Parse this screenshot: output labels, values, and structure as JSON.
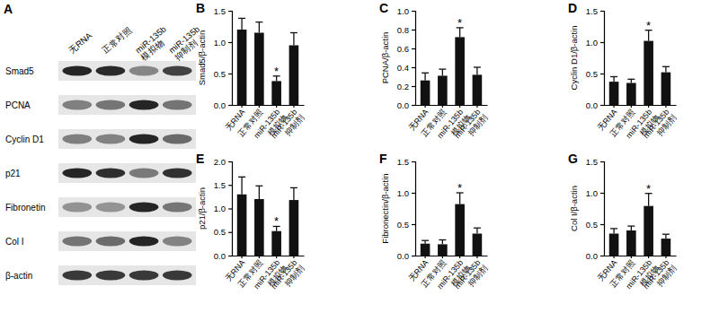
{
  "chart_data": [
    {
      "type": "blot",
      "panel_label": "A",
      "lanes": [
        "无RNA",
        "正常对照",
        "miR-135b 模拟物",
        "miR-135b 抑制剂"
      ],
      "rows": [
        "Smad5",
        "PCNA",
        "Cyclin D1",
        "p21",
        "Fibronetin",
        "Col I",
        "β-actin"
      ]
    },
    {
      "type": "bar",
      "panel_label": "B",
      "ylabel": "Smad5/β-actin",
      "color": "#111111",
      "categories": [
        "无RNA",
        "正常对照",
        "miR-135b 模拟物",
        "miR-135b 抑制剂"
      ],
      "values": [
        1.2,
        1.15,
        0.38,
        0.95
      ],
      "errors": [
        0.18,
        0.17,
        0.08,
        0.2
      ],
      "ylim": [
        0,
        1.5
      ],
      "yticks": [
        {
          "value": 0,
          "label": "0.0"
        },
        {
          "value": 0.5,
          "label": "0.5"
        },
        {
          "value": 1,
          "label": "1.0"
        },
        {
          "value": 1.5,
          "label": "1.5"
        }
      ],
      "annotations": [
        {
          "x": "miR-135b 模拟物",
          "text": "*"
        }
      ]
    },
    {
      "type": "bar",
      "panel_label": "C",
      "ylabel": "PCNA/β-actin",
      "color": "#111111",
      "categories": [
        "无RNA",
        "正常对照",
        "miR-135b 模拟物",
        "miR-135b 抑制剂"
      ],
      "values": [
        0.26,
        0.31,
        0.72,
        0.32
      ],
      "errors": [
        0.08,
        0.07,
        0.1,
        0.08
      ],
      "ylim": [
        0,
        1
      ],
      "yticks": [
        {
          "value": 0,
          "label": "0.0"
        },
        0.2,
        0.4,
        0.6,
        0.8,
        {
          "value": 1,
          "label": "1.0"
        }
      ],
      "annotations": [
        {
          "x": "miR-135b 模拟物",
          "text": "*"
        }
      ]
    },
    {
      "type": "bar",
      "panel_label": "D",
      "ylabel": "Cyclin D1/β-actin",
      "color": "#111111",
      "categories": [
        "无RNA",
        "正常对照",
        "miR-135b 模拟物",
        "miR-135b 抑制剂"
      ],
      "values": [
        0.37,
        0.35,
        1.02,
        0.52
      ],
      "errors": [
        0.08,
        0.06,
        0.17,
        0.09
      ],
      "ylim": [
        0,
        1.5
      ],
      "yticks": [
        {
          "value": 0,
          "label": "0.0"
        },
        {
          "value": 0.5,
          "label": "0.5"
        },
        {
          "value": 1,
          "label": "1.0"
        },
        {
          "value": 1.5,
          "label": "1.5"
        }
      ],
      "annotations": [
        {
          "x": "miR-135b 模拟物",
          "text": "*"
        }
      ]
    },
    {
      "type": "bar",
      "panel_label": "E",
      "ylabel": "p21/β-actin",
      "color": "#111111",
      "categories": [
        "无RNA",
        "正常对照",
        "miR-135b 模拟物",
        "miR-135b 抑制剂"
      ],
      "values": [
        1.3,
        1.2,
        0.52,
        1.18
      ],
      "errors": [
        0.37,
        0.28,
        0.1,
        0.26
      ],
      "ylim": [
        0,
        2
      ],
      "yticks": [
        {
          "value": 0,
          "label": "0.0"
        },
        {
          "value": 0.5,
          "label": "0.5"
        },
        {
          "value": 1,
          "label": "1.0"
        },
        {
          "value": 1.5,
          "label": "1.5"
        },
        {
          "value": 2,
          "label": "2.0"
        }
      ],
      "annotations": [
        {
          "x": "miR-135b 模拟物",
          "text": "*"
        }
      ]
    },
    {
      "type": "bar",
      "panel_label": "F",
      "ylabel": "Fibronectin/β-actin",
      "color": "#111111",
      "categories": [
        "无RNA",
        "正常对照",
        "miR-135b 模拟物",
        "miR-135b 抑制剂"
      ],
      "values": [
        0.19,
        0.18,
        0.82,
        0.35
      ],
      "errors": [
        0.05,
        0.07,
        0.18,
        0.09
      ],
      "ylim": [
        0,
        1.5
      ],
      "yticks": [
        {
          "value": 0,
          "label": "0.0"
        },
        {
          "value": 0.5,
          "label": "0.5"
        },
        {
          "value": 1,
          "label": "1.0"
        },
        {
          "value": 1.5,
          "label": "1.5"
        }
      ],
      "annotations": [
        {
          "x": "miR-135b 模拟物",
          "text": "*"
        }
      ]
    },
    {
      "type": "bar",
      "panel_label": "G",
      "ylabel": "Col I/β-actin",
      "color": "#111111",
      "categories": [
        "无RNA",
        "正常对照",
        "miR-135b 模拟物",
        "miR-135b 抑制剂"
      ],
      "values": [
        0.35,
        0.4,
        0.79,
        0.27
      ],
      "errors": [
        0.08,
        0.07,
        0.2,
        0.07
      ],
      "ylim": [
        0,
        1.5
      ],
      "yticks": [
        {
          "value": 0,
          "label": "0.0"
        },
        {
          "value": 0.5,
          "label": "0.5"
        },
        {
          "value": 1,
          "label": "1.0"
        },
        {
          "value": 1.5,
          "label": "1.5"
        }
      ],
      "annotations": [
        {
          "x": "miR-135b 模拟物",
          "text": "*"
        }
      ]
    }
  ]
}
